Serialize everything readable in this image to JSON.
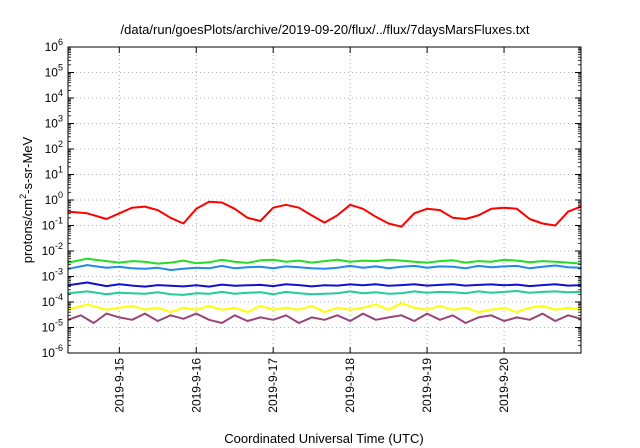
{
  "chart_data": {
    "type": "line",
    "title": "/data/run/goesPlots/archive/2019-09-20/flux/../flux/7daysMarsFluxes.txt",
    "xlabel": "Coordinated Universal Time (UTC)",
    "ylabel": "protons/cm²-s-sr-MeV",
    "ylabel_parts": {
      "pre": "protons/cm",
      "sup": "2",
      "post": "-s-sr-MeV"
    },
    "x_date_range": [
      "2019-09-14T08:00",
      "2019-09-21T00:00"
    ],
    "x_ticks": [
      {
        "date": "2019-09-15T00:00",
        "label": "2019-9-15"
      },
      {
        "date": "2019-09-16T00:00",
        "label": "2019-9-16"
      },
      {
        "date": "2019-09-17T00:00",
        "label": "2019-9-17"
      },
      {
        "date": "2019-09-18T00:00",
        "label": "2019-9-18"
      },
      {
        "date": "2019-09-19T00:00",
        "label": "2019-9-19"
      },
      {
        "date": "2019-09-20T00:00",
        "label": "2019-9-20"
      }
    ],
    "y_scale": "log",
    "ylim": [
      1e-06,
      1000000.0
    ],
    "y_ticks": [
      {
        "value": 1000000.0,
        "base": "10",
        "exp": "6"
      },
      {
        "value": 100000.0,
        "base": "10",
        "exp": "5"
      },
      {
        "value": 10000.0,
        "base": "10",
        "exp": "4"
      },
      {
        "value": 1000.0,
        "base": "10",
        "exp": "3"
      },
      {
        "value": 100.0,
        "base": "10",
        "exp": "2"
      },
      {
        "value": 10.0,
        "base": "10",
        "exp": "1"
      },
      {
        "value": 1,
        "base": "10",
        "exp": "0"
      },
      {
        "value": 0.1,
        "base": "10",
        "exp": "-1"
      },
      {
        "value": 0.01,
        "base": "10",
        "exp": "-2"
      },
      {
        "value": 0.001,
        "base": "10",
        "exp": "-3"
      },
      {
        "value": 0.0001,
        "base": "10",
        "exp": "-4"
      },
      {
        "value": 1e-05,
        "base": "10",
        "exp": "-5"
      },
      {
        "value": 1e-06,
        "base": "10",
        "exp": "-6"
      }
    ],
    "grid": true,
    "series": [
      {
        "color": "#ff0000",
        "x": [
          "2019-09-14T08:00",
          "2019-09-14T14:00",
          "2019-09-14T20:00",
          "2019-09-15T00:00",
          "2019-09-15T04:00",
          "2019-09-15T08:00",
          "2019-09-15T12:00",
          "2019-09-15T16:00",
          "2019-09-15T20:00",
          "2019-09-16T00:00",
          "2019-09-16T04:00",
          "2019-09-16T08:00",
          "2019-09-16T12:00",
          "2019-09-16T16:00",
          "2019-09-16T20:00",
          "2019-09-17T00:00",
          "2019-09-17T04:00",
          "2019-09-17T08:00",
          "2019-09-17T12:00",
          "2019-09-17T16:00",
          "2019-09-17T20:00",
          "2019-09-18T00:00",
          "2019-09-18T04:00",
          "2019-09-18T08:00",
          "2019-09-18T12:00",
          "2019-09-18T16:00",
          "2019-09-18T20:00",
          "2019-09-19T00:00",
          "2019-09-19T04:00",
          "2019-09-19T08:00",
          "2019-09-19T12:00",
          "2019-09-19T16:00",
          "2019-09-19T20:00",
          "2019-09-20T00:00",
          "2019-09-20T04:00",
          "2019-09-20T08:00",
          "2019-09-20T12:00",
          "2019-09-20T16:00",
          "2019-09-20T20:00",
          "2019-09-21T00:00"
        ],
        "y": [
          0.35,
          0.3,
          0.18,
          0.3,
          0.5,
          0.55,
          0.4,
          0.2,
          0.12,
          0.45,
          0.85,
          0.8,
          0.45,
          0.2,
          0.15,
          0.5,
          0.65,
          0.5,
          0.25,
          0.13,
          0.25,
          0.65,
          0.45,
          0.22,
          0.12,
          0.09,
          0.3,
          0.45,
          0.4,
          0.2,
          0.18,
          0.25,
          0.45,
          0.5,
          0.45,
          0.18,
          0.12,
          0.1,
          0.35,
          0.55
        ]
      },
      {
        "color": "#22dd22",
        "x": [
          "2019-09-14T08:00",
          "2019-09-14T14:00",
          "2019-09-14T20:00",
          "2019-09-15T00:00",
          "2019-09-15T04:00",
          "2019-09-15T08:00",
          "2019-09-15T12:00",
          "2019-09-15T16:00",
          "2019-09-15T20:00",
          "2019-09-16T00:00",
          "2019-09-16T04:00",
          "2019-09-16T08:00",
          "2019-09-16T12:00",
          "2019-09-16T16:00",
          "2019-09-16T20:00",
          "2019-09-17T00:00",
          "2019-09-17T04:00",
          "2019-09-17T08:00",
          "2019-09-17T12:00",
          "2019-09-17T16:00",
          "2019-09-17T20:00",
          "2019-09-18T00:00",
          "2019-09-18T04:00",
          "2019-09-18T08:00",
          "2019-09-18T12:00",
          "2019-09-18T16:00",
          "2019-09-18T20:00",
          "2019-09-19T00:00",
          "2019-09-19T04:00",
          "2019-09-19T08:00",
          "2019-09-19T12:00",
          "2019-09-19T16:00",
          "2019-09-19T20:00",
          "2019-09-20T00:00",
          "2019-09-20T04:00",
          "2019-09-20T08:00",
          "2019-09-20T12:00",
          "2019-09-20T16:00",
          "2019-09-20T20:00",
          "2019-09-21T00:00"
        ],
        "y": [
          0.0035,
          0.005,
          0.004,
          0.0035,
          0.004,
          0.0038,
          0.0032,
          0.0035,
          0.0042,
          0.0033,
          0.0036,
          0.0045,
          0.0038,
          0.0034,
          0.0043,
          0.0045,
          0.0038,
          0.0042,
          0.0035,
          0.004,
          0.0045,
          0.0038,
          0.0042,
          0.004,
          0.0045,
          0.0042,
          0.0038,
          0.0035,
          0.004,
          0.0043,
          0.0035,
          0.004,
          0.0038,
          0.0045,
          0.0042,
          0.0036,
          0.004,
          0.0038,
          0.0035,
          0.0032
        ]
      },
      {
        "color": "#2288ee",
        "x": [
          "2019-09-14T08:00",
          "2019-09-14T14:00",
          "2019-09-14T20:00",
          "2019-09-15T00:00",
          "2019-09-15T04:00",
          "2019-09-15T08:00",
          "2019-09-15T12:00",
          "2019-09-15T16:00",
          "2019-09-15T20:00",
          "2019-09-16T00:00",
          "2019-09-16T04:00",
          "2019-09-16T08:00",
          "2019-09-16T12:00",
          "2019-09-16T16:00",
          "2019-09-16T20:00",
          "2019-09-17T00:00",
          "2019-09-17T04:00",
          "2019-09-17T08:00",
          "2019-09-17T12:00",
          "2019-09-17T16:00",
          "2019-09-17T20:00",
          "2019-09-18T00:00",
          "2019-09-18T04:00",
          "2019-09-18T08:00",
          "2019-09-18T12:00",
          "2019-09-18T16:00",
          "2019-09-18T20:00",
          "2019-09-19T00:00",
          "2019-09-19T04:00",
          "2019-09-19T08:00",
          "2019-09-19T12:00",
          "2019-09-19T16:00",
          "2019-09-19T20:00",
          "2019-09-20T00:00",
          "2019-09-20T04:00",
          "2019-09-20T08:00",
          "2019-09-20T12:00",
          "2019-09-20T16:00",
          "2019-09-20T20:00",
          "2019-09-21T00:00"
        ],
        "y": [
          0.002,
          0.0028,
          0.0022,
          0.0024,
          0.0021,
          0.002,
          0.0022,
          0.0018,
          0.002,
          0.0022,
          0.0021,
          0.0026,
          0.0021,
          0.0023,
          0.0024,
          0.0021,
          0.0025,
          0.0023,
          0.0021,
          0.002,
          0.0022,
          0.0026,
          0.0022,
          0.0025,
          0.0021,
          0.0024,
          0.0026,
          0.0022,
          0.0025,
          0.0024,
          0.0021,
          0.0026,
          0.0023,
          0.0025,
          0.0026,
          0.0021,
          0.0024,
          0.0027,
          0.0023,
          0.0022
        ]
      },
      {
        "color": "#1111cc",
        "x": [
          "2019-09-14T08:00",
          "2019-09-14T14:00",
          "2019-09-14T20:00",
          "2019-09-15T00:00",
          "2019-09-15T04:00",
          "2019-09-15T08:00",
          "2019-09-15T12:00",
          "2019-09-15T16:00",
          "2019-09-15T20:00",
          "2019-09-16T00:00",
          "2019-09-16T04:00",
          "2019-09-16T08:00",
          "2019-09-16T12:00",
          "2019-09-16T16:00",
          "2019-09-16T20:00",
          "2019-09-17T00:00",
          "2019-09-17T04:00",
          "2019-09-17T08:00",
          "2019-09-17T12:00",
          "2019-09-17T16:00",
          "2019-09-17T20:00",
          "2019-09-18T00:00",
          "2019-09-18T04:00",
          "2019-09-18T08:00",
          "2019-09-18T12:00",
          "2019-09-18T16:00",
          "2019-09-18T20:00",
          "2019-09-19T00:00",
          "2019-09-19T04:00",
          "2019-09-19T08:00",
          "2019-09-19T12:00",
          "2019-09-19T16:00",
          "2019-09-19T20:00",
          "2019-09-20T00:00",
          "2019-09-20T04:00",
          "2019-09-20T08:00",
          "2019-09-20T12:00",
          "2019-09-20T16:00",
          "2019-09-20T20:00",
          "2019-09-21T00:00"
        ],
        "y": [
          0.00045,
          0.00058,
          0.00042,
          0.0005,
          0.00044,
          0.0004,
          0.00046,
          0.00043,
          0.00041,
          0.00045,
          0.0004,
          0.00048,
          0.00043,
          0.00045,
          0.00047,
          0.00042,
          0.0005,
          0.00046,
          0.00041,
          0.00045,
          0.00044,
          0.00049,
          0.00045,
          0.0005,
          0.00043,
          0.00046,
          0.0005,
          0.00044,
          0.00047,
          0.0005,
          0.00044,
          0.00047,
          0.00049,
          0.00045,
          0.00048,
          0.00042,
          0.00046,
          0.0005,
          0.00044,
          0.00046
        ]
      },
      {
        "color": "#22cc99",
        "x": [
          "2019-09-14T08:00",
          "2019-09-14T14:00",
          "2019-09-14T20:00",
          "2019-09-15T00:00",
          "2019-09-15T04:00",
          "2019-09-15T08:00",
          "2019-09-15T12:00",
          "2019-09-15T16:00",
          "2019-09-15T20:00",
          "2019-09-16T00:00",
          "2019-09-16T04:00",
          "2019-09-16T08:00",
          "2019-09-16T12:00",
          "2019-09-16T16:00",
          "2019-09-16T20:00",
          "2019-09-17T00:00",
          "2019-09-17T04:00",
          "2019-09-17T08:00",
          "2019-09-17T12:00",
          "2019-09-17T16:00",
          "2019-09-17T20:00",
          "2019-09-18T00:00",
          "2019-09-18T04:00",
          "2019-09-18T08:00",
          "2019-09-18T12:00",
          "2019-09-18T16:00",
          "2019-09-18T20:00",
          "2019-09-19T00:00",
          "2019-09-19T04:00",
          "2019-09-19T08:00",
          "2019-09-19T12:00",
          "2019-09-19T16:00",
          "2019-09-19T20:00",
          "2019-09-20T00:00",
          "2019-09-20T04:00",
          "2019-09-20T08:00",
          "2019-09-20T12:00",
          "2019-09-20T16:00",
          "2019-09-20T20:00",
          "2019-09-21T00:00"
        ],
        "y": [
          0.00022,
          0.00026,
          0.0002,
          0.00023,
          0.00022,
          0.00021,
          0.00024,
          0.0002,
          0.00019,
          0.00022,
          0.00021,
          0.00025,
          0.00021,
          0.00023,
          0.00024,
          0.0002,
          0.00025,
          0.00022,
          0.0002,
          0.00021,
          0.00022,
          0.00026,
          0.00022,
          0.00024,
          0.00021,
          0.00022,
          0.00026,
          0.00023,
          0.00025,
          0.00024,
          0.00022,
          0.00026,
          0.00023,
          0.00025,
          0.00027,
          0.00023,
          0.00025,
          0.00026,
          0.00024,
          0.00025
        ]
      },
      {
        "color": "#ffff00",
        "x": [
          "2019-09-14T08:00",
          "2019-09-14T14:00",
          "2019-09-14T20:00",
          "2019-09-15T00:00",
          "2019-09-15T04:00",
          "2019-09-15T08:00",
          "2019-09-15T12:00",
          "2019-09-15T16:00",
          "2019-09-15T20:00",
          "2019-09-16T00:00",
          "2019-09-16T04:00",
          "2019-09-16T08:00",
          "2019-09-16T12:00",
          "2019-09-16T16:00",
          "2019-09-16T20:00",
          "2019-09-17T00:00",
          "2019-09-17T04:00",
          "2019-09-17T08:00",
          "2019-09-17T12:00",
          "2019-09-17T16:00",
          "2019-09-17T20:00",
          "2019-09-18T00:00",
          "2019-09-18T04:00",
          "2019-09-18T08:00",
          "2019-09-18T12:00",
          "2019-09-18T16:00",
          "2019-09-18T20:00",
          "2019-09-19T00:00",
          "2019-09-19T04:00",
          "2019-09-19T08:00",
          "2019-09-19T12:00",
          "2019-09-19T16:00",
          "2019-09-19T20:00",
          "2019-09-20T00:00",
          "2019-09-20T04:00",
          "2019-09-20T08:00",
          "2019-09-20T12:00",
          "2019-09-20T16:00",
          "2019-09-20T20:00",
          "2019-09-21T00:00"
        ],
        "y": [
          5e-05,
          8e-05,
          5e-05,
          6e-05,
          7e-05,
          5e-05,
          6e-05,
          4e-05,
          6e-05,
          5e-05,
          7e-05,
          5e-05,
          6e-05,
          4e-05,
          7e-05,
          5e-05,
          6e-05,
          5e-05,
          7e-05,
          4e-05,
          6e-05,
          5e-05,
          6e-05,
          8e-05,
          5e-05,
          9e-05,
          6e-05,
          5e-05,
          7e-05,
          5e-05,
          6e-05,
          4e-05,
          5e-05,
          6e-05,
          4e-05,
          6e-05,
          7e-05,
          5e-05,
          6e-05,
          5e-05
        ]
      },
      {
        "color": "#994477",
        "x": [
          "2019-09-14T08:00",
          "2019-09-14T12:00",
          "2019-09-14T16:00",
          "2019-09-14T20:00",
          "2019-09-15T00:00",
          "2019-09-15T04:00",
          "2019-09-15T08:00",
          "2019-09-15T12:00",
          "2019-09-15T16:00",
          "2019-09-15T20:00",
          "2019-09-16T00:00",
          "2019-09-16T04:00",
          "2019-09-16T08:00",
          "2019-09-16T12:00",
          "2019-09-16T16:00",
          "2019-09-16T20:00",
          "2019-09-17T00:00",
          "2019-09-17T04:00",
          "2019-09-17T08:00",
          "2019-09-17T12:00",
          "2019-09-17T16:00",
          "2019-09-17T20:00",
          "2019-09-18T00:00",
          "2019-09-18T04:00",
          "2019-09-18T08:00",
          "2019-09-18T12:00",
          "2019-09-18T16:00",
          "2019-09-18T20:00",
          "2019-09-19T00:00",
          "2019-09-19T04:00",
          "2019-09-19T08:00",
          "2019-09-19T12:00",
          "2019-09-19T16:00",
          "2019-09-19T20:00",
          "2019-09-20T00:00",
          "2019-09-20T04:00",
          "2019-09-20T08:00",
          "2019-09-20T12:00",
          "2019-09-20T16:00",
          "2019-09-20T20:00",
          "2019-09-21T00:00"
        ],
        "y": [
          2e-05,
          3e-05,
          1.5e-05,
          3.5e-05,
          2.5e-05,
          2e-05,
          3.5e-05,
          1.8e-05,
          3e-05,
          2.2e-05,
          3.5e-05,
          2e-05,
          1.5e-05,
          3e-05,
          1.8e-05,
          2.5e-05,
          2e-05,
          3e-05,
          1.5e-05,
          2.5e-05,
          2e-05,
          3e-05,
          1.8e-05,
          3.5e-05,
          2e-05,
          2.5e-05,
          3e-05,
          1.8e-05,
          3.5e-05,
          2e-05,
          3e-05,
          1.5e-05,
          2.5e-05,
          3e-05,
          1.8e-05,
          2.5e-05,
          2e-05,
          3.5e-05,
          1.8e-05,
          3e-05,
          2.2e-05
        ]
      }
    ]
  }
}
